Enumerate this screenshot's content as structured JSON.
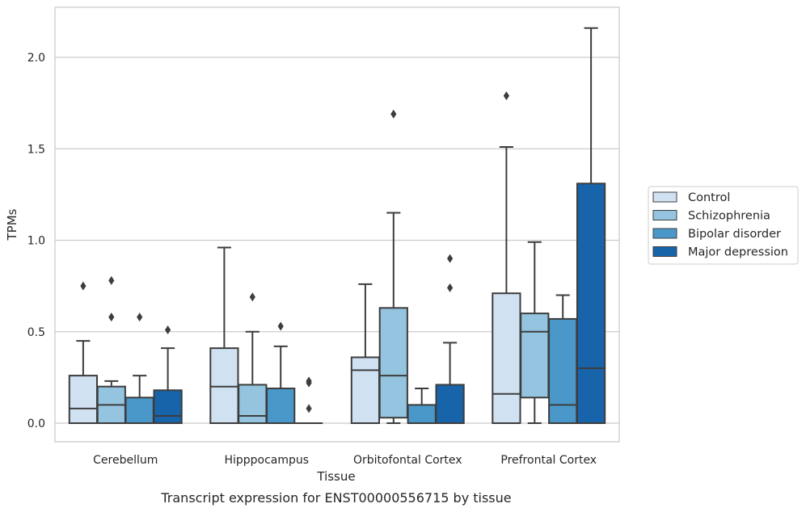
{
  "chart_data": {
    "type": "box",
    "title": "",
    "caption": "Transcript expression for ENST00000556715 by tissue",
    "xlabel": "Tissue",
    "ylabel": "TPMs",
    "ylim": [
      -0.1,
      2.27
    ],
    "yticks": [
      "0.0",
      "0.5",
      "1.0",
      "1.5",
      "2.0"
    ],
    "ytick_values": [
      0.0,
      0.5,
      1.0,
      1.5,
      2.0
    ],
    "grid": "horizontal",
    "legend_position": "right",
    "categories": [
      "Cerebellum",
      "Hipppocampus",
      "Orbitofontal Cortex",
      "Prefrontal Cortex"
    ],
    "series": [
      {
        "name": "Control",
        "color": "#d0e1f2",
        "boxes": [
          {
            "min": 0.0,
            "q1": 0.0,
            "median": 0.08,
            "q3": 0.26,
            "max": 0.45,
            "outliers": [
              0.75
            ]
          },
          {
            "min": 0.0,
            "q1": 0.0,
            "median": 0.2,
            "q3": 0.41,
            "max": 0.96,
            "outliers": []
          },
          {
            "min": 0.0,
            "q1": 0.0,
            "median": 0.29,
            "q3": 0.36,
            "max": 0.76,
            "outliers": []
          },
          {
            "min": 0.0,
            "q1": 0.0,
            "median": 0.16,
            "q3": 0.71,
            "max": 1.51,
            "outliers": [
              1.79
            ]
          }
        ]
      },
      {
        "name": "Schizophrenia",
        "color": "#94c4df",
        "boxes": [
          {
            "min": 0.0,
            "q1": 0.0,
            "median": 0.1,
            "q3": 0.2,
            "max": 0.23,
            "outliers": [
              0.58,
              0.78
            ]
          },
          {
            "min": 0.0,
            "q1": 0.0,
            "median": 0.04,
            "q3": 0.21,
            "max": 0.5,
            "outliers": [
              0.69
            ]
          },
          {
            "min": 0.0,
            "q1": 0.03,
            "median": 0.26,
            "q3": 0.63,
            "max": 1.15,
            "outliers": [
              1.69
            ]
          },
          {
            "min": 0.0,
            "q1": 0.14,
            "median": 0.5,
            "q3": 0.6,
            "max": 0.99,
            "outliers": []
          }
        ]
      },
      {
        "name": "Bipolar disorder",
        "color": "#4a98c9",
        "boxes": [
          {
            "min": 0.0,
            "q1": 0.0,
            "median": 0.0,
            "q3": 0.14,
            "max": 0.26,
            "outliers": [
              0.58
            ]
          },
          {
            "min": 0.0,
            "q1": 0.0,
            "median": 0.0,
            "q3": 0.19,
            "max": 0.42,
            "outliers": [
              0.53
            ]
          },
          {
            "min": 0.0,
            "q1": 0.0,
            "median": 0.0,
            "q3": 0.1,
            "max": 0.19,
            "outliers": []
          },
          {
            "min": 0.0,
            "q1": 0.0,
            "median": 0.1,
            "q3": 0.57,
            "max": 0.7,
            "outliers": []
          }
        ]
      },
      {
        "name": "Major depression",
        "color": "#1764ab",
        "boxes": [
          {
            "min": 0.0,
            "q1": 0.0,
            "median": 0.04,
            "q3": 0.18,
            "max": 0.41,
            "outliers": [
              0.51
            ]
          },
          {
            "min": 0.0,
            "q1": 0.0,
            "median": 0.0,
            "q3": 0.0,
            "max": 0.0,
            "outliers": [
              0.08,
              0.22,
              0.23
            ]
          },
          {
            "min": 0.0,
            "q1": 0.0,
            "median": 0.0,
            "q3": 0.21,
            "max": 0.44,
            "outliers": [
              0.74,
              0.9
            ]
          },
          {
            "min": 0.0,
            "q1": 0.0,
            "median": 0.3,
            "q3": 1.31,
            "max": 2.16,
            "outliers": []
          }
        ]
      }
    ]
  }
}
